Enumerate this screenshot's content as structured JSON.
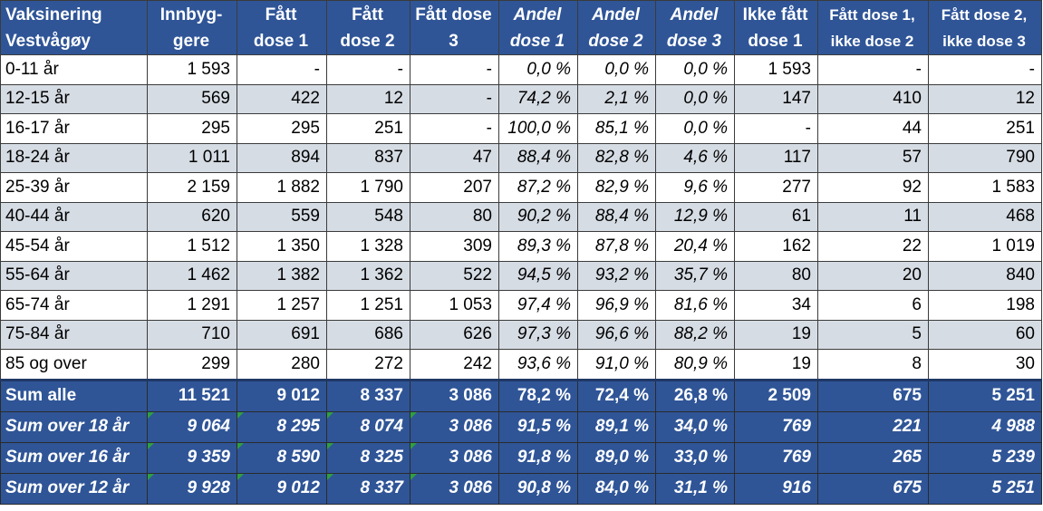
{
  "header": [
    {
      "lines": [
        "Vaksinering",
        "Vestvågøy"
      ]
    },
    {
      "lines": [
        "Innbyg-",
        "gere"
      ]
    },
    {
      "lines": [
        "Fått",
        "dose 1"
      ]
    },
    {
      "lines": [
        "Fått",
        "dose 2"
      ]
    },
    {
      "lines": [
        "Fått dose",
        "3"
      ]
    },
    {
      "lines": [
        "Andel",
        "dose 1"
      ]
    },
    {
      "lines": [
        "Andel",
        "dose 2"
      ]
    },
    {
      "lines": [
        "Andel",
        "dose 3"
      ]
    },
    {
      "lines": [
        "Ikke fått",
        "dose 1"
      ]
    },
    {
      "lines": [
        "Fått dose 1,",
        "ikke dose 2"
      ]
    },
    {
      "lines": [
        "Fått dose 2,",
        "ikke dose 3"
      ]
    }
  ],
  "rows": [
    [
      "0-11 år",
      "1 593",
      "-",
      "-",
      "-",
      "0,0 %",
      "0,0 %",
      "0,0 %",
      "1 593",
      "-",
      "-"
    ],
    [
      "12-15 år",
      "569",
      "422",
      "12",
      "-",
      "74,2 %",
      "2,1 %",
      "0,0 %",
      "147",
      "410",
      "12"
    ],
    [
      "16-17 år",
      "295",
      "295",
      "251",
      "-",
      "100,0 %",
      "85,1 %",
      "0,0 %",
      "-",
      "44",
      "251"
    ],
    [
      "18-24 år",
      "1 011",
      "894",
      "837",
      "47",
      "88,4 %",
      "82,8 %",
      "4,6 %",
      "117",
      "57",
      "790"
    ],
    [
      "25-39 år",
      "2 159",
      "1 882",
      "1 790",
      "207",
      "87,2 %",
      "82,9 %",
      "9,6 %",
      "277",
      "92",
      "1 583"
    ],
    [
      "40-44 år",
      "620",
      "559",
      "548",
      "80",
      "90,2 %",
      "88,4 %",
      "12,9 %",
      "61",
      "11",
      "468"
    ],
    [
      "45-54 år",
      "1 512",
      "1 350",
      "1 328",
      "309",
      "89,3 %",
      "87,8 %",
      "20,4 %",
      "162",
      "22",
      "1 019"
    ],
    [
      "55-64 år",
      "1 462",
      "1 382",
      "1 362",
      "522",
      "94,5 %",
      "93,2 %",
      "35,7 %",
      "80",
      "20",
      "840"
    ],
    [
      "65-74 år",
      "1 291",
      "1 257",
      "1 251",
      "1 053",
      "97,4 %",
      "96,9 %",
      "81,6 %",
      "34",
      "6",
      "198"
    ],
    [
      "75-84 år",
      "710",
      "691",
      "686",
      "626",
      "97,3 %",
      "96,6 %",
      "88,2 %",
      "19",
      "5",
      "60"
    ],
    [
      "85 og over",
      "299",
      "280",
      "272",
      "242",
      "93,6 %",
      "91,0 %",
      "80,9 %",
      "19",
      "8",
      "30"
    ]
  ],
  "totals": [
    [
      "Sum alle",
      "11 521",
      "9 012",
      "8 337",
      "3 086",
      "78,2 %",
      "72,4 %",
      "26,8 %",
      "2 509",
      "675",
      "5 251"
    ],
    [
      "Sum over 18 år",
      "9 064",
      "8 295",
      "8 074",
      "3 086",
      "91,5 %",
      "89,1 %",
      "34,0 %",
      "769",
      "221",
      "4 988"
    ],
    [
      "Sum over 16 år",
      "9 359",
      "8 590",
      "8 325",
      "3 086",
      "91,8 %",
      "89,0 %",
      "33,0 %",
      "769",
      "265",
      "5 239"
    ],
    [
      "Sum over 12 år",
      "9 928",
      "9 012",
      "8 337",
      "3 086",
      "90,8 %",
      "84,0 %",
      "31,1 %",
      "916",
      "675",
      "5 251"
    ]
  ],
  "colors": {
    "header_bg": "#2f5597",
    "header_text": "#ffffff",
    "row_alt_bg": "#d6dce4",
    "row_bg": "#ffffff",
    "error_flag": "#2ea043"
  }
}
